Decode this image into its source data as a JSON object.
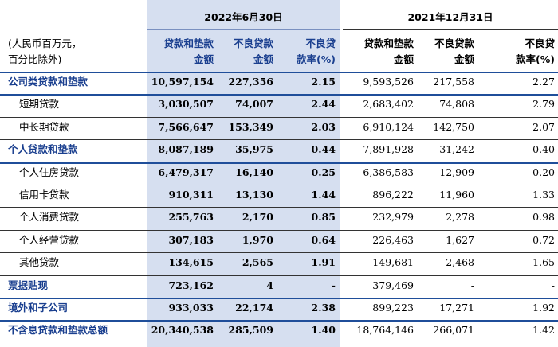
{
  "header": {
    "period_current": "2022年6月30日",
    "period_prior": "2021年12月31日",
    "unit_note_line1": "(人民币百万元，",
    "unit_note_line2": "百分比除外)",
    "columns": [
      {
        "line1": "贷款和垫款",
        "line2": "金额"
      },
      {
        "line1": "不良贷款",
        "line2": "金额"
      },
      {
        "line1": "不良贷",
        "line2": "款率(%)"
      },
      {
        "line1": "贷款和垫款",
        "line2": "金额"
      },
      {
        "line1": "不良贷款",
        "line2": "金额"
      },
      {
        "line1": "不良贷",
        "line2": "款率(%)"
      }
    ]
  },
  "rows": [
    {
      "label": "公司类贷款和垫款",
      "level": "major",
      "values": [
        "10,597,154",
        "227,356",
        "2.15",
        "9,593,526",
        "217,558",
        "2.27"
      ]
    },
    {
      "label": "短期贷款",
      "level": "sub",
      "values": [
        "3,030,507",
        "74,007",
        "2.44",
        "2,683,402",
        "74,808",
        "2.79"
      ]
    },
    {
      "label": "中长期贷款",
      "level": "sub",
      "values": [
        "7,566,647",
        "153,349",
        "2.03",
        "6,910,124",
        "142,750",
        "2.07"
      ]
    },
    {
      "label": "个人贷款和垫款",
      "level": "major",
      "values": [
        "8,087,189",
        "35,975",
        "0.44",
        "7,891,928",
        "31,242",
        "0.40"
      ]
    },
    {
      "label": "个人住房贷款",
      "level": "sub",
      "values": [
        "6,479,317",
        "16,140",
        "0.25",
        "6,386,583",
        "12,909",
        "0.20"
      ]
    },
    {
      "label": "信用卡贷款",
      "level": "sub",
      "values": [
        "910,311",
        "13,130",
        "1.44",
        "896,222",
        "11,960",
        "1.33"
      ]
    },
    {
      "label": "个人消费贷款",
      "level": "sub",
      "values": [
        "255,763",
        "2,170",
        "0.85",
        "232,979",
        "2,278",
        "0.98"
      ]
    },
    {
      "label": "个人经营贷款",
      "level": "sub",
      "values": [
        "307,183",
        "1,970",
        "0.64",
        "226,463",
        "1,627",
        "0.72"
      ]
    },
    {
      "label": "其他贷款",
      "level": "sub",
      "values": [
        "134,615",
        "2,565",
        "1.91",
        "149,681",
        "2,468",
        "1.65"
      ]
    },
    {
      "label": "票据贴现",
      "level": "major",
      "values": [
        "723,162",
        "4",
        "-",
        "379,469",
        "-",
        "-"
      ]
    },
    {
      "label": "境外和子公司",
      "level": "major",
      "values": [
        "933,033",
        "22,174",
        "2.38",
        "899,223",
        "17,271",
        "1.92"
      ]
    },
    {
      "label": "不含息贷款和垫款总额",
      "level": "major",
      "values": [
        "20,340,538",
        "285,509",
        "1.40",
        "18,764,146",
        "266,071",
        "1.42"
      ]
    }
  ]
}
